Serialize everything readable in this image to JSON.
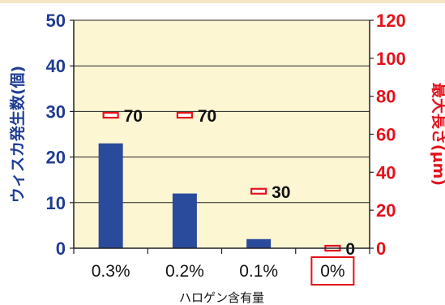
{
  "chart_data": {
    "type": "bar",
    "categories": [
      "0.3%",
      "0.2%",
      "0.1%",
      "0%"
    ],
    "highlighted_category": "0%",
    "xlabel": "ハロゲン含有量",
    "y_left": {
      "label": "ウィスカ発生数(個)",
      "range": [
        0,
        50
      ],
      "ticks": [
        0,
        10,
        20,
        30,
        40,
        50
      ],
      "color": "#1f3c94"
    },
    "y_right": {
      "label": "最大長さ(μm)",
      "range": [
        0,
        120
      ],
      "ticks": [
        0,
        20,
        40,
        60,
        80,
        100,
        120
      ],
      "color": "#e3121b"
    },
    "series": [
      {
        "name": "ウィスカ発生数(個)",
        "kind": "bar",
        "axis": "left",
        "values": [
          23,
          12,
          2,
          0
        ],
        "color": "#2a4a9c"
      },
      {
        "name": "最大長さ(μm)",
        "kind": "marker",
        "axis": "right",
        "values": [
          70,
          70,
          30,
          0
        ],
        "labels": [
          "70",
          "70",
          "30",
          "0"
        ],
        "color": "#e3121b"
      }
    ],
    "plot_background": "#fdf6d3",
    "grid": true,
    "legend": "none"
  }
}
